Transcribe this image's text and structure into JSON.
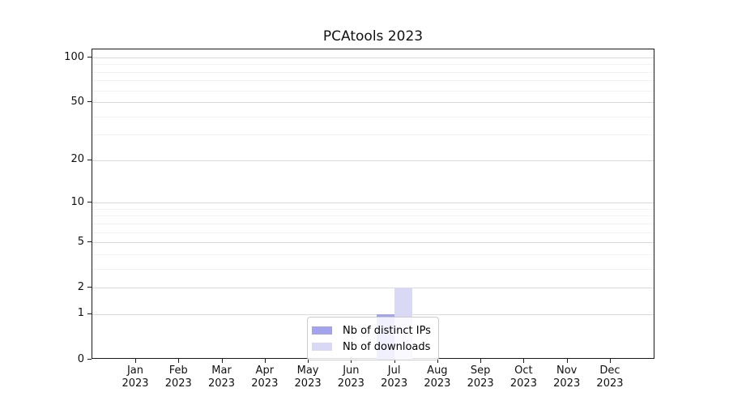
{
  "chart_data": {
    "type": "bar",
    "title": "PCAtools 2023",
    "categories": [
      {
        "month": "Jan",
        "year": "2023"
      },
      {
        "month": "Feb",
        "year": "2023"
      },
      {
        "month": "Mar",
        "year": "2023"
      },
      {
        "month": "Apr",
        "year": "2023"
      },
      {
        "month": "May",
        "year": "2023"
      },
      {
        "month": "Jun",
        "year": "2023"
      },
      {
        "month": "Jul",
        "year": "2023"
      },
      {
        "month": "Aug",
        "year": "2023"
      },
      {
        "month": "Sep",
        "year": "2023"
      },
      {
        "month": "Oct",
        "year": "2023"
      },
      {
        "month": "Nov",
        "year": "2023"
      },
      {
        "month": "Dec",
        "year": "2023"
      }
    ],
    "series": [
      {
        "name": "Nb of distinct IPs",
        "color": "#a3a3ee",
        "values": [
          0,
          0,
          0,
          0,
          0,
          0,
          1,
          0,
          0,
          0,
          0,
          0
        ]
      },
      {
        "name": "Nb of downloads",
        "color": "#d9d9f6",
        "values": [
          0,
          0,
          0,
          0,
          0,
          0,
          2,
          0,
          0,
          0,
          0,
          0
        ]
      }
    ],
    "xlabel": "",
    "ylabel": "",
    "yscale": "log1p",
    "ylim": [
      0,
      115
    ],
    "y_major_ticks": [
      0,
      1,
      2,
      5,
      10,
      20,
      50,
      100
    ],
    "y_minor_ticks": [
      3,
      4,
      6,
      7,
      8,
      9,
      30,
      40,
      60,
      70,
      80,
      90
    ],
    "grid": "on",
    "legend_position": "lower-center"
  }
}
